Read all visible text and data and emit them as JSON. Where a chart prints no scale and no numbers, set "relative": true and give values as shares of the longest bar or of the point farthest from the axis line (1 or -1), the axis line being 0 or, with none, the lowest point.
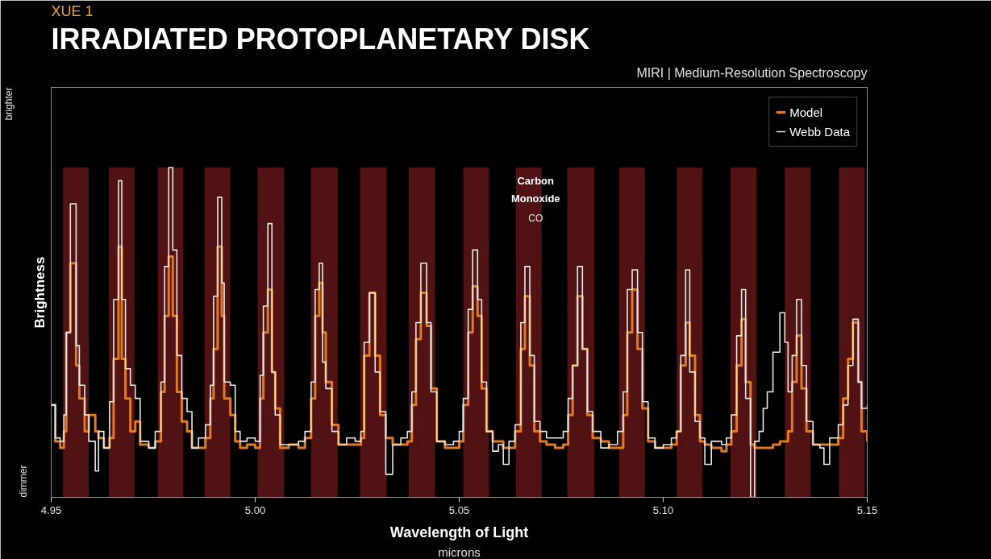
{
  "chart_data": {
    "type": "step",
    "subtitle": "XUE 1",
    "title": "IRRADIATED PROTOPLANETARY DISK",
    "xlabel": "Wavelength of Light",
    "ylabel": "Brightness",
    "annotations": [
      "MIRI | Medium-Resolution Spectroscopy",
      "brighter",
      "dimmer",
      "Carbon Monoxide",
      "CO",
      "microns"
    ],
    "relative": true,
    "xlim": [
      4.95,
      5.15
    ],
    "xticks": [
      {
        "value": 4.95,
        "label": "4.95"
      },
      {
        "value": 5.0,
        "label": "5.00"
      },
      {
        "value": 5.05,
        "label": "5.05"
      },
      {
        "value": 5.1,
        "label": "5.10"
      },
      {
        "value": 5.15,
        "label": "5.15"
      }
    ],
    "x": [
      4.95,
      4.951,
      4.9522,
      4.9531,
      4.9537,
      4.9547,
      4.9561,
      4.9569,
      4.9582,
      4.9592,
      4.9608,
      4.9616,
      4.9629,
      4.9643,
      4.9653,
      4.9665,
      4.9673,
      4.9682,
      4.9694,
      4.9706,
      4.9718,
      4.9739,
      4.9755,
      4.9769,
      4.9778,
      4.9788,
      4.9798,
      4.9808,
      4.982,
      4.9833,
      4.9845,
      4.9861,
      4.9878,
      4.989,
      4.9898,
      4.9908,
      4.9918,
      4.9924,
      4.9939,
      4.9951,
      4.9963,
      4.998,
      5.0,
      5.0012,
      5.002,
      5.0031,
      5.0041,
      5.0049,
      5.0061,
      5.0082,
      5.0106,
      5.0122,
      5.0137,
      5.0147,
      5.0157,
      5.0165,
      5.0173,
      5.0188,
      5.0204,
      5.0224,
      5.0245,
      5.0259,
      5.0267,
      5.028,
      5.0294,
      5.0306,
      5.032,
      5.0337,
      5.0357,
      5.0373,
      5.0384,
      5.0394,
      5.0406,
      5.042,
      5.0431,
      5.0445,
      5.0465,
      5.0486,
      5.05,
      5.051,
      5.0522,
      5.0533,
      5.0545,
      5.0555,
      5.0567,
      5.0582,
      5.0596,
      5.0608,
      5.0622,
      5.0637,
      5.0651,
      5.0661,
      5.0673,
      5.0684,
      5.0698,
      5.0714,
      5.0735,
      5.0755,
      5.0767,
      5.0778,
      5.079,
      5.0802,
      5.0814,
      5.0827,
      5.0847,
      5.0867,
      5.0888,
      5.0902,
      5.0912,
      5.0924,
      5.0937,
      5.0949,
      5.0963,
      5.098,
      5.1,
      5.102,
      5.1033,
      5.1043,
      5.1055,
      5.1065,
      5.1078,
      5.109,
      5.1102,
      5.1118,
      5.1143,
      5.1155,
      5.1167,
      5.118,
      5.1192,
      5.1202,
      5.1214,
      5.1224,
      5.1235,
      5.1245,
      5.1255,
      5.1269,
      5.1286,
      5.1298,
      5.1306,
      5.1316,
      5.1327,
      5.1339,
      5.1351,
      5.1367,
      5.1384,
      5.1394,
      5.1408,
      5.1429,
      5.1441,
      5.1453,
      5.1465,
      5.1478,
      5.1486,
      5.15
    ],
    "series": [
      {
        "name": "Model",
        "color": "#e07b24",
        "values": [
          0.28,
          0.17,
          0.15,
          0.2,
          0.5,
          0.71,
          0.4,
          0.3,
          0.2,
          0.25,
          0.2,
          0.18,
          0.15,
          0.18,
          0.42,
          0.76,
          0.42,
          0.3,
          0.2,
          0.23,
          0.16,
          0.15,
          0.17,
          0.32,
          0.55,
          0.73,
          0.55,
          0.32,
          0.23,
          0.2,
          0.15,
          0.15,
          0.18,
          0.3,
          0.45,
          0.76,
          0.55,
          0.3,
          0.25,
          0.17,
          0.15,
          0.16,
          0.15,
          0.3,
          0.5,
          0.63,
          0.38,
          0.27,
          0.15,
          0.16,
          0.15,
          0.18,
          0.3,
          0.55,
          0.65,
          0.5,
          0.35,
          0.22,
          0.16,
          0.16,
          0.16,
          0.18,
          0.43,
          0.62,
          0.43,
          0.25,
          0.18,
          0.16,
          0.16,
          0.17,
          0.28,
          0.48,
          0.62,
          0.52,
          0.33,
          0.17,
          0.15,
          0.15,
          0.17,
          0.28,
          0.5,
          0.64,
          0.55,
          0.33,
          0.2,
          0.17,
          0.17,
          0.15,
          0.15,
          0.2,
          0.45,
          0.61,
          0.4,
          0.2,
          0.17,
          0.16,
          0.15,
          0.16,
          0.25,
          0.4,
          0.61,
          0.45,
          0.25,
          0.18,
          0.17,
          0.15,
          0.15,
          0.25,
          0.5,
          0.63,
          0.45,
          0.27,
          0.17,
          0.15,
          0.15,
          0.16,
          0.2,
          0.4,
          0.53,
          0.43,
          0.25,
          0.17,
          0.16,
          0.15,
          0.14,
          0.16,
          0.2,
          0.4,
          0.54,
          0.35,
          0.16,
          0.15,
          0.15,
          0.15,
          0.15,
          0.16,
          0.17,
          0.17,
          0.2,
          0.35,
          0.49,
          0.33,
          0.2,
          0.16,
          0.16,
          0.16,
          0.16,
          0.18,
          0.3,
          0.42,
          0.53,
          0.35,
          0.2,
          0.17
        ]
      },
      {
        "name": "Webb Data",
        "color": "#e8e8e8",
        "values": [
          0.28,
          0.18,
          0.17,
          0.25,
          0.5,
          0.89,
          0.46,
          0.34,
          0.25,
          0.17,
          0.08,
          0.2,
          0.15,
          0.29,
          0.6,
          0.96,
          0.6,
          0.39,
          0.34,
          0.3,
          0.17,
          0.15,
          0.2,
          0.35,
          0.7,
          1.0,
          0.75,
          0.43,
          0.3,
          0.26,
          0.15,
          0.18,
          0.22,
          0.34,
          0.61,
          0.91,
          0.65,
          0.35,
          0.34,
          0.2,
          0.17,
          0.18,
          0.17,
          0.37,
          0.58,
          0.83,
          0.38,
          0.25,
          0.16,
          0.16,
          0.17,
          0.2,
          0.35,
          0.63,
          0.71,
          0.41,
          0.33,
          0.2,
          0.16,
          0.18,
          0.17,
          0.2,
          0.47,
          0.62,
          0.38,
          0.26,
          0.07,
          0.16,
          0.18,
          0.2,
          0.32,
          0.53,
          0.71,
          0.53,
          0.32,
          0.17,
          0.16,
          0.17,
          0.2,
          0.3,
          0.57,
          0.75,
          0.6,
          0.35,
          0.2,
          0.14,
          0.16,
          0.1,
          0.17,
          0.22,
          0.53,
          0.7,
          0.43,
          0.23,
          0.2,
          0.18,
          0.18,
          0.2,
          0.3,
          0.4,
          0.7,
          0.45,
          0.26,
          0.2,
          0.15,
          0.16,
          0.2,
          0.32,
          0.63,
          0.69,
          0.5,
          0.29,
          0.18,
          0.15,
          0.16,
          0.18,
          0.2,
          0.43,
          0.69,
          0.38,
          0.23,
          0.18,
          0.1,
          0.17,
          0.16,
          0.18,
          0.25,
          0.49,
          0.63,
          0.3,
          0.0,
          0.17,
          0.2,
          0.27,
          0.32,
          0.44,
          0.56,
          0.47,
          0.32,
          0.43,
          0.6,
          0.4,
          0.23,
          0.16,
          0.15,
          0.1,
          0.18,
          0.22,
          0.28,
          0.4,
          0.54,
          0.35,
          0.27,
          0.28
        ]
      }
    ],
    "bands": [
      {
        "axis": "x",
        "from": 4.9529,
        "to": 4.9592,
        "color": "#6b1818"
      },
      {
        "axis": "x",
        "from": 4.9641,
        "to": 4.9704,
        "color": "#6b1818"
      },
      {
        "axis": "x",
        "from": 4.9761,
        "to": 4.9824,
        "color": "#6b1818"
      },
      {
        "axis": "x",
        "from": 4.9876,
        "to": 4.9939,
        "color": "#6b1818"
      },
      {
        "axis": "x",
        "from": 5.0006,
        "to": 5.0071,
        "color": "#6b1818"
      },
      {
        "axis": "x",
        "from": 5.0137,
        "to": 5.0202,
        "color": "#6b1818"
      },
      {
        "axis": "x",
        "from": 5.0257,
        "to": 5.0322,
        "color": "#6b1818"
      },
      {
        "axis": "x",
        "from": 5.0376,
        "to": 5.0441,
        "color": "#6b1818"
      },
      {
        "axis": "x",
        "from": 5.051,
        "to": 5.0573,
        "color": "#6b1818"
      },
      {
        "axis": "x",
        "from": 5.0639,
        "to": 5.0702,
        "color": "#6b1818"
      },
      {
        "axis": "x",
        "from": 5.0765,
        "to": 5.0831,
        "color": "#6b1818"
      },
      {
        "axis": "x",
        "from": 5.0892,
        "to": 5.0955,
        "color": "#6b1818"
      },
      {
        "axis": "x",
        "from": 5.1033,
        "to": 5.1096,
        "color": "#6b1818"
      },
      {
        "axis": "x",
        "from": 5.1165,
        "to": 5.1229,
        "color": "#6b1818"
      },
      {
        "axis": "x",
        "from": 5.1298,
        "to": 5.1361,
        "color": "#6b1818"
      },
      {
        "axis": "x",
        "from": 5.1431,
        "to": 5.1494,
        "color": "#6b1818"
      }
    ],
    "legend": "top right",
    "line_style": "solid",
    "grid": false
  }
}
